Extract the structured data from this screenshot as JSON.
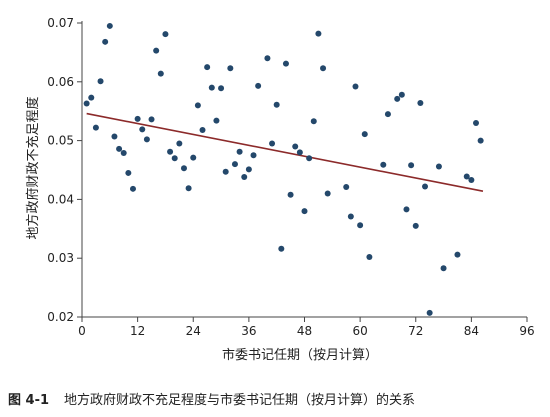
{
  "caption": {
    "number": "图 4-1",
    "text": "地方政府财政不充足程度与市委书记任期（按月计算）的关系"
  },
  "chart_data": {
    "type": "scatter",
    "xlabel": "市委书记任期（按月计算）",
    "ylabel": "地方政府财政不充足程度",
    "xlim": [
      0,
      96
    ],
    "ylim": [
      0.02,
      0.07
    ],
    "xticks": [
      0,
      12,
      24,
      36,
      48,
      60,
      72,
      84,
      96
    ],
    "yticks": [
      0.02,
      0.03,
      0.04,
      0.05,
      0.06,
      0.07
    ],
    "xtick_labels": [
      "0",
      "12",
      "24",
      "36",
      "48",
      "60",
      "72",
      "84",
      "96"
    ],
    "ytick_labels": [
      "0.02",
      "0.03",
      "0.04",
      "0.05",
      "0.06",
      "0.07"
    ],
    "grid": false,
    "point_color": "#24486b",
    "fit_color": "#8c2a2a",
    "fit_line": {
      "x": [
        1,
        86.5
      ],
      "y": [
        0.0546,
        0.0414
      ]
    },
    "points": [
      [
        1,
        0.0563
      ],
      [
        2,
        0.0573
      ],
      [
        3,
        0.0522
      ],
      [
        4,
        0.0601
      ],
      [
        5,
        0.0668
      ],
      [
        6,
        0.0695
      ],
      [
        7,
        0.0507
      ],
      [
        8,
        0.0486
      ],
      [
        9,
        0.0479
      ],
      [
        10,
        0.0445
      ],
      [
        11,
        0.0418
      ],
      [
        12,
        0.0537
      ],
      [
        13,
        0.0519
      ],
      [
        14,
        0.0502
      ],
      [
        15,
        0.0536
      ],
      [
        16,
        0.0653
      ],
      [
        17,
        0.0614
      ],
      [
        18,
        0.0681
      ],
      [
        19,
        0.0481
      ],
      [
        20,
        0.047
      ],
      [
        21,
        0.0495
      ],
      [
        22,
        0.0453
      ],
      [
        23,
        0.0419
      ],
      [
        24,
        0.0471
      ],
      [
        25,
        0.056
      ],
      [
        26,
        0.0518
      ],
      [
        27,
        0.0625
      ],
      [
        28,
        0.059
      ],
      [
        29,
        0.0534
      ],
      [
        30,
        0.0589
      ],
      [
        31,
        0.0447
      ],
      [
        32,
        0.0623
      ],
      [
        33,
        0.046
      ],
      [
        34,
        0.0481
      ],
      [
        35,
        0.0438
      ],
      [
        36,
        0.0451
      ],
      [
        37,
        0.0475
      ],
      [
        38,
        0.0593
      ],
      [
        40,
        0.064
      ],
      [
        41,
        0.0495
      ],
      [
        42,
        0.0561
      ],
      [
        43,
        0.0316
      ],
      [
        44,
        0.0631
      ],
      [
        45,
        0.0408
      ],
      [
        46,
        0.049
      ],
      [
        47,
        0.048
      ],
      [
        48,
        0.038
      ],
      [
        49,
        0.047
      ],
      [
        50,
        0.0533
      ],
      [
        51,
        0.0682
      ],
      [
        52,
        0.0623
      ],
      [
        53,
        0.041
      ],
      [
        57,
        0.0421
      ],
      [
        58,
        0.0371
      ],
      [
        59,
        0.0592
      ],
      [
        60,
        0.0356
      ],
      [
        61,
        0.0511
      ],
      [
        62,
        0.0302
      ],
      [
        65,
        0.0459
      ],
      [
        66,
        0.0545
      ],
      [
        68,
        0.0571
      ],
      [
        69,
        0.0578
      ],
      [
        70,
        0.0383
      ],
      [
        71,
        0.0458
      ],
      [
        72,
        0.0355
      ],
      [
        73,
        0.0564
      ],
      [
        74,
        0.0422
      ],
      [
        75,
        0.0207
      ],
      [
        77,
        0.0456
      ],
      [
        78,
        0.0283
      ],
      [
        81,
        0.0306
      ],
      [
        83,
        0.0439
      ],
      [
        84,
        0.0433
      ],
      [
        85,
        0.053
      ],
      [
        86,
        0.05
      ]
    ]
  }
}
